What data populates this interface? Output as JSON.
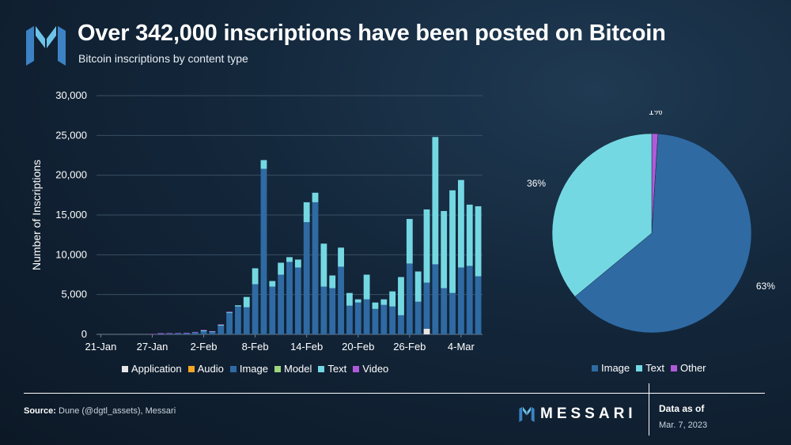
{
  "header": {
    "title": "Over 342,000 inscriptions have been posted on Bitcoin",
    "subtitle": "Bitcoin inscriptions by content type"
  },
  "colors": {
    "application": "#e6e6e6",
    "audio": "#f5a623",
    "image": "#2f6aa3",
    "model": "#9fd67c",
    "text": "#74d8e3",
    "video": "#b05ad9",
    "other": "#b05ad9"
  },
  "chart_data": [
    {
      "type": "bar",
      "stacked": true,
      "ylabel": "Number of Inscriptions",
      "ylim": [
        0,
        30000
      ],
      "yticks": [
        "0",
        "5,000",
        "10,000",
        "15,000",
        "20,000",
        "25,000",
        "30,000"
      ],
      "xtick_labels": [
        "21-Jan",
        "27-Jan",
        "2-Feb",
        "8-Feb",
        "14-Feb",
        "20-Feb",
        "26-Feb",
        "4-Mar"
      ],
      "xtick_positions": [
        0,
        6,
        12,
        18,
        24,
        30,
        36,
        42
      ],
      "categories": [
        "21-Jan",
        "22-Jan",
        "23-Jan",
        "24-Jan",
        "25-Jan",
        "26-Jan",
        "27-Jan",
        "28-Jan",
        "29-Jan",
        "30-Jan",
        "31-Jan",
        "1-Feb",
        "2-Feb",
        "3-Feb",
        "4-Feb",
        "5-Feb",
        "6-Feb",
        "7-Feb",
        "8-Feb",
        "9-Feb",
        "10-Feb",
        "11-Feb",
        "12-Feb",
        "13-Feb",
        "14-Feb",
        "15-Feb",
        "16-Feb",
        "17-Feb",
        "18-Feb",
        "19-Feb",
        "20-Feb",
        "21-Feb",
        "22-Feb",
        "23-Feb",
        "24-Feb",
        "25-Feb",
        "26-Feb",
        "27-Feb",
        "28-Feb",
        "1-Mar",
        "2-Mar",
        "3-Mar",
        "4-Mar",
        "5-Mar",
        "6-Mar"
      ],
      "legend": [
        "Application",
        "Audio",
        "Image",
        "Model",
        "Text",
        "Video"
      ],
      "series": [
        {
          "name": "Application",
          "values": [
            0,
            0,
            0,
            0,
            0,
            0,
            0,
            0,
            0,
            0,
            0,
            0,
            0,
            0,
            0,
            0,
            0,
            0,
            0,
            0,
            0,
            0,
            0,
            0,
            0,
            0,
            0,
            0,
            0,
            0,
            0,
            0,
            0,
            0,
            0,
            0,
            0,
            0,
            700,
            0,
            0,
            0,
            0,
            0,
            0
          ]
        },
        {
          "name": "Audio",
          "values": [
            0,
            0,
            0,
            0,
            0,
            0,
            0,
            0,
            0,
            0,
            0,
            0,
            0,
            0,
            0,
            0,
            0,
            0,
            0,
            0,
            0,
            0,
            0,
            0,
            0,
            0,
            0,
            0,
            0,
            0,
            0,
            0,
            0,
            0,
            0,
            0,
            0,
            0,
            0,
            0,
            0,
            0,
            0,
            0,
            0
          ]
        },
        {
          "name": "Image",
          "values": [
            0,
            0,
            0,
            0,
            0,
            0,
            0,
            50,
            80,
            120,
            150,
            250,
            400,
            300,
            1100,
            2700,
            3500,
            3400,
            6300,
            20800,
            6000,
            7500,
            9100,
            8400,
            14100,
            16600,
            6000,
            5800,
            8500,
            3600,
            4000,
            4400,
            3200,
            3700,
            3500,
            2400,
            8900,
            4100,
            5800,
            8800,
            5800,
            5200,
            8400,
            8600,
            7300
          ]
        },
        {
          "name": "Model",
          "values": [
            0,
            0,
            0,
            0,
            0,
            0,
            0,
            0,
            0,
            0,
            0,
            0,
            0,
            0,
            0,
            0,
            0,
            0,
            0,
            0,
            0,
            0,
            0,
            0,
            0,
            0,
            0,
            0,
            0,
            0,
            0,
            0,
            0,
            0,
            0,
            0,
            0,
            0,
            0,
            0,
            0,
            0,
            0,
            0,
            0
          ]
        },
        {
          "name": "Text",
          "values": [
            0,
            0,
            0,
            0,
            0,
            0,
            0,
            0,
            0,
            0,
            0,
            0,
            100,
            50,
            100,
            100,
            150,
            1300,
            2000,
            1100,
            700,
            1500,
            600,
            1000,
            2500,
            1200,
            5400,
            1600,
            2400,
            1600,
            400,
            3100,
            800,
            700,
            1900,
            4800,
            5600,
            3800,
            9200,
            16000,
            9700,
            12900,
            11000,
            7700,
            8800
          ]
        },
        {
          "name": "Video",
          "values": [
            0,
            0,
            0,
            0,
            0,
            0,
            50,
            100,
            80,
            60,
            50,
            50,
            50,
            50,
            50,
            50,
            0,
            0,
            0,
            0,
            0,
            0,
            0,
            0,
            0,
            0,
            0,
            0,
            0,
            0,
            0,
            0,
            0,
            0,
            0,
            0,
            0,
            0,
            0,
            0,
            0,
            0,
            0,
            0,
            0
          ]
        }
      ]
    },
    {
      "type": "pie",
      "categories": [
        "Image",
        "Text",
        "Other"
      ],
      "values": [
        63,
        36,
        1
      ],
      "labels": [
        "63%",
        "36%",
        "1%"
      ],
      "legend": [
        "Image",
        "Text",
        "Other"
      ]
    }
  ],
  "footer": {
    "source_label": "Source:",
    "source_text": " Dune (@dgtl_assets), Messari",
    "brand": "MESSARI",
    "asof_label": "Data as of",
    "asof_date": "Mar. 7, 2023"
  }
}
